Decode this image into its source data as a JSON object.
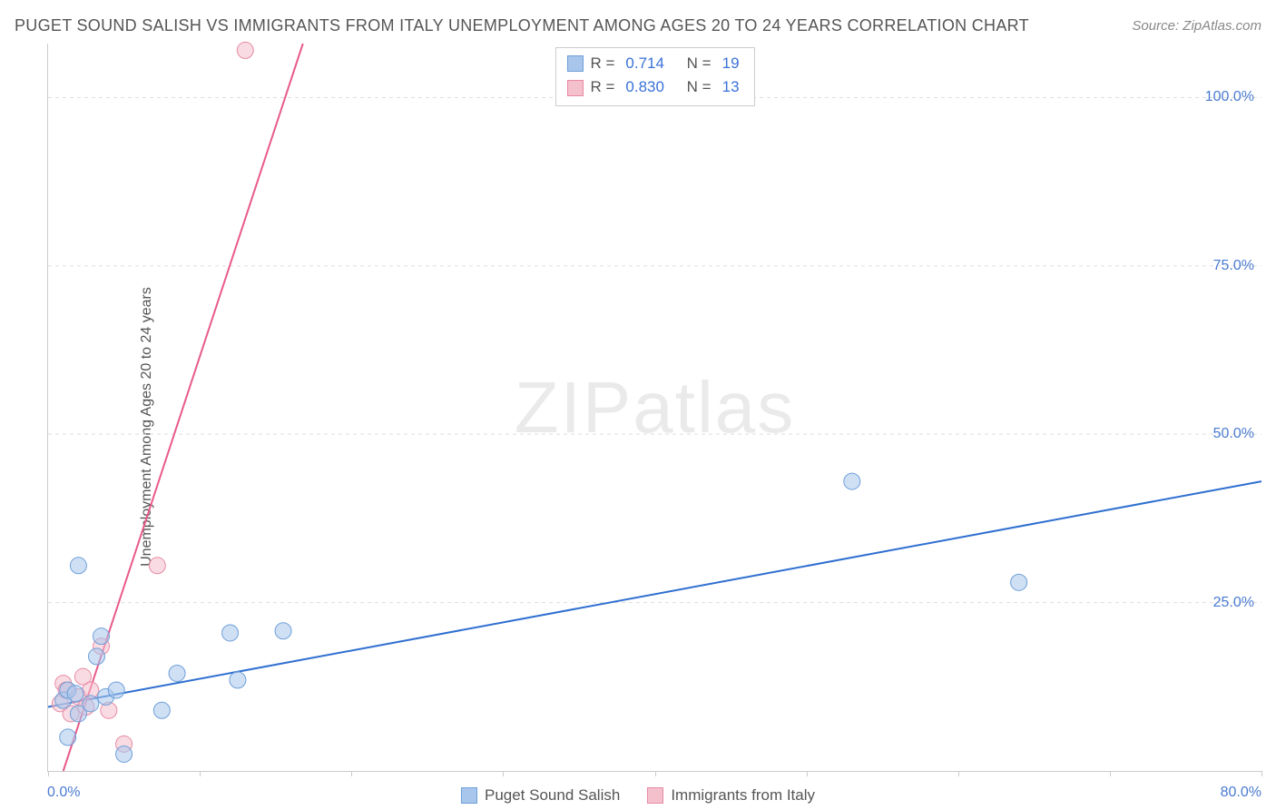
{
  "header": {
    "title": "PUGET SOUND SALISH VS IMMIGRANTS FROM ITALY UNEMPLOYMENT AMONG AGES 20 TO 24 YEARS CORRELATION CHART",
    "source_prefix": "Source: ",
    "source_link": "ZipAtlas.com"
  },
  "chart": {
    "type": "scatter",
    "ylabel": "Unemployment Among Ages 20 to 24 years",
    "watermark": "ZIPatlas",
    "background_color": "#ffffff",
    "grid_color": "#dddddd",
    "axis_color": "#cccccc",
    "tick_label_color": "#4a7bd0",
    "xlim": [
      0,
      80
    ],
    "ylim": [
      0,
      108
    ],
    "xticks": [
      0,
      10,
      20,
      30,
      40,
      50,
      60,
      70,
      80
    ],
    "xtick_labels": {
      "0": "0.0%",
      "80": "80.0%"
    },
    "yticks": [
      25,
      50,
      75,
      100
    ],
    "ytick_labels": {
      "25": "25.0%",
      "50": "50.0%",
      "75": "75.0%",
      "100": "100.0%"
    },
    "marker_radius": 9,
    "marker_opacity": 0.55,
    "line_width": 2,
    "series": [
      {
        "id": "blue",
        "name": "Puget Sound Salish",
        "fill_color": "#a8c6ec",
        "stroke_color": "#6e9fd8",
        "line_color": "#2f6fd0",
        "r_label": "R =",
        "r_value": "0.714",
        "n_label": "N =",
        "n_value": "19",
        "points": [
          {
            "x": 1.0,
            "y": 10.5
          },
          {
            "x": 1.3,
            "y": 12.0
          },
          {
            "x": 1.3,
            "y": 5.0
          },
          {
            "x": 1.8,
            "y": 11.5
          },
          {
            "x": 2.0,
            "y": 8.5
          },
          {
            "x": 2.0,
            "y": 30.5
          },
          {
            "x": 2.8,
            "y": 10.0
          },
          {
            "x": 3.2,
            "y": 17.0
          },
          {
            "x": 3.5,
            "y": 20.0
          },
          {
            "x": 3.8,
            "y": 11.0
          },
          {
            "x": 4.5,
            "y": 12.0
          },
          {
            "x": 5.0,
            "y": 2.5
          },
          {
            "x": 7.5,
            "y": 9.0
          },
          {
            "x": 8.5,
            "y": 14.5
          },
          {
            "x": 12.0,
            "y": 20.5
          },
          {
            "x": 12.5,
            "y": 13.5
          },
          {
            "x": 15.5,
            "y": 20.8
          },
          {
            "x": 53.0,
            "y": 43.0
          },
          {
            "x": 64.0,
            "y": 28.0
          }
        ],
        "trend": {
          "x1": 0,
          "y1": 9.5,
          "x2": 80,
          "y2": 43.0
        }
      },
      {
        "id": "pink",
        "name": "Immigrants from Italy",
        "fill_color": "#f4c0cc",
        "stroke_color": "#e88aa4",
        "line_color": "#e85a8a",
        "r_label": "R =",
        "r_value": "0.830",
        "n_label": "N =",
        "n_value": "13",
        "points": [
          {
            "x": 0.8,
            "y": 10.0
          },
          {
            "x": 1.0,
            "y": 13.0
          },
          {
            "x": 1.2,
            "y": 12.0
          },
          {
            "x": 1.5,
            "y": 8.5
          },
          {
            "x": 2.0,
            "y": 11.0
          },
          {
            "x": 2.3,
            "y": 14.0
          },
          {
            "x": 2.5,
            "y": 9.5
          },
          {
            "x": 2.8,
            "y": 12.0
          },
          {
            "x": 3.5,
            "y": 18.5
          },
          {
            "x": 4.0,
            "y": 9.0
          },
          {
            "x": 5.0,
            "y": 4.0
          },
          {
            "x": 7.2,
            "y": 30.5
          },
          {
            "x": 13.0,
            "y": 107.0
          }
        ],
        "trend": {
          "x1": 1.0,
          "y1": 0,
          "x2": 16.8,
          "y2": 108
        }
      }
    ]
  }
}
